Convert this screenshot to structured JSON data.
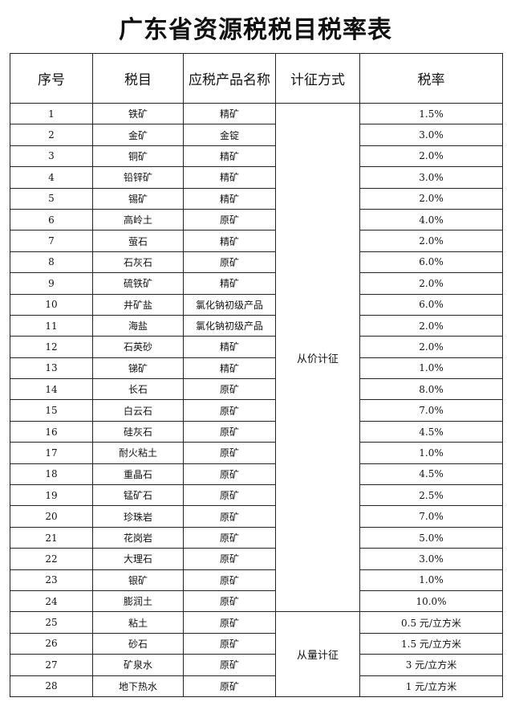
{
  "title": "广东省资源税税目税率表",
  "headers": [
    "序号",
    "税目",
    "应税产品名称",
    "计征方式",
    "税率"
  ],
  "methods": [
    "从价计征",
    "从量计征"
  ],
  "rows": [
    [
      "1",
      "铁矿",
      "精矿",
      "1.5%"
    ],
    [
      "2",
      "金矿",
      "金锭",
      "3.0%"
    ],
    [
      "3",
      "铜矿",
      "精矿",
      "2.0%"
    ],
    [
      "4",
      "铅锌矿",
      "精矿",
      "3.0%"
    ],
    [
      "5",
      "锡矿",
      "精矿",
      "2.0%"
    ],
    [
      "6",
      "高岭土",
      "原矿",
      "4.0%"
    ],
    [
      "7",
      "萤石",
      "精矿",
      "2.0%"
    ],
    [
      "8",
      "石灰石",
      "原矿",
      "6.0%"
    ],
    [
      "9",
      "硫铁矿",
      "精矿",
      "2.0%"
    ],
    [
      "10",
      "井矿盐",
      "氯化钠初级产品",
      "6.0%"
    ],
    [
      "11",
      "海盐",
      "氯化钠初级产品",
      "2.0%"
    ],
    [
      "12",
      "石英砂",
      "精矿",
      "2.0%"
    ],
    [
      "13",
      "锑矿",
      "精矿",
      "1.0%"
    ],
    [
      "14",
      "长石",
      "原矿",
      "8.0%"
    ],
    [
      "15",
      "白云石",
      "原矿",
      "7.0%"
    ],
    [
      "16",
      "硅灰石",
      "原矿",
      "4.5%"
    ],
    [
      "17",
      "耐火粘土",
      "原矿",
      "1.0%"
    ],
    [
      "18",
      "重晶石",
      "原矿",
      "4.5%"
    ],
    [
      "19",
      "锰矿石",
      "原矿",
      "2.5%"
    ],
    [
      "20",
      "珍珠岩",
      "原矿",
      "7.0%"
    ],
    [
      "21",
      "花岗岩",
      "原矿",
      "5.0%"
    ],
    [
      "22",
      "大理石",
      "原矿",
      "3.0%"
    ],
    [
      "23",
      "银矿",
      "原矿",
      "1.0%"
    ],
    [
      "24",
      "膨润土",
      "原矿",
      "10.0%"
    ],
    [
      "25",
      "粘土",
      "原矿",
      "0.5 元/立方米"
    ],
    [
      "26",
      "砂石",
      "原矿",
      "1.5 元/立方米"
    ],
    [
      "27",
      "矿泉水",
      "原矿",
      "3 元/立方米"
    ],
    [
      "28",
      "地下热水",
      "原矿",
      "1 元/立方米"
    ]
  ]
}
